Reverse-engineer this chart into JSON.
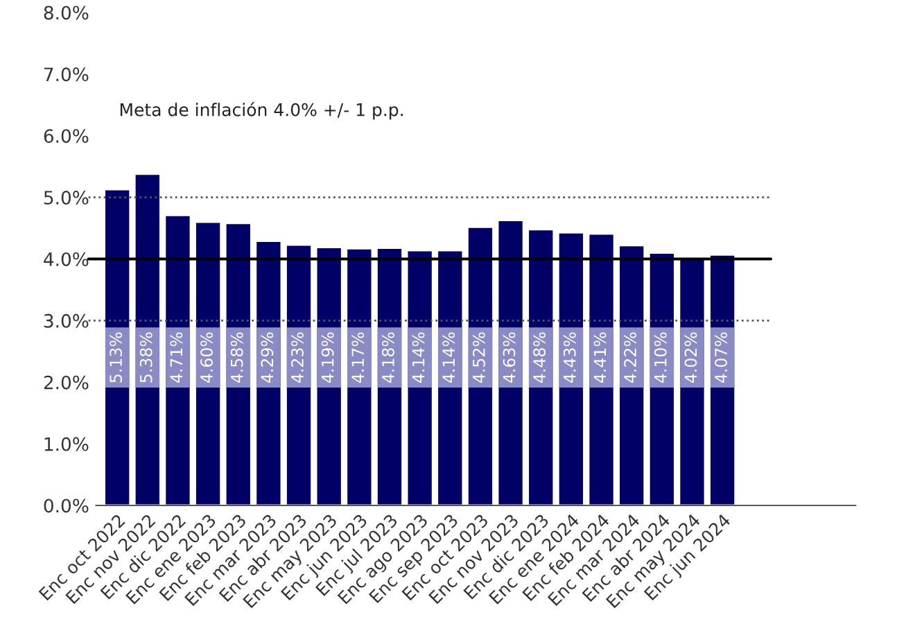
{
  "chart_data": {
    "type": "bar",
    "categories": [
      "Enc oct 2022",
      "Enc nov 2022",
      "Enc dic 2022",
      "Enc ene 2023",
      "Enc feb 2023",
      "Enc mar 2023",
      "Enc abr 2023",
      "Enc may 2023",
      "Enc jun 2023",
      "Enc jul 2023",
      "Enc ago 2023",
      "Enc sep 2023",
      "Enc oct 2023",
      "Enc nov 2023",
      "Enc dic 2023",
      "Enc ene 2024",
      "Enc feb 2024",
      "Enc mar 2024",
      "Enc abr 2024",
      "Enc may 2024",
      "Enc jun 2024"
    ],
    "values": [
      5.13,
      5.38,
      4.71,
      4.6,
      4.58,
      4.29,
      4.23,
      4.19,
      4.17,
      4.18,
      4.14,
      4.14,
      4.52,
      4.63,
      4.48,
      4.43,
      4.41,
      4.22,
      4.1,
      4.02,
      4.07
    ],
    "value_labels": [
      "5.13%",
      "5.38%",
      "4.71%",
      "4.60%",
      "4.58%",
      "4.29%",
      "4.23%",
      "4.19%",
      "4.17%",
      "4.18%",
      "4.14%",
      "4.14%",
      "4.52%",
      "4.63%",
      "4.48%",
      "4.43%",
      "4.41%",
      "4.22%",
      "4.10%",
      "4.02%",
      "4.07%"
    ],
    "color": "#000066",
    "ylim": [
      0,
      8
    ],
    "yticks": [
      {
        "value": 0,
        "label": "0.0%"
      },
      {
        "value": 1,
        "label": "1.0%"
      },
      {
        "value": 2,
        "label": "2.0%"
      },
      {
        "value": 3,
        "label": "3.0%"
      },
      {
        "value": 4,
        "label": "4.0%"
      },
      {
        "value": 5,
        "label": "5.0%"
      },
      {
        "value": 6,
        "label": "6.0%"
      },
      {
        "value": 7,
        "label": "7.0%"
      },
      {
        "value": 8,
        "label": "8.0%"
      }
    ],
    "ref_lines": [
      {
        "axis": "y",
        "value": 4,
        "color": "#000000",
        "line_style": "solid"
      },
      {
        "axis": "y",
        "value": 5,
        "color": "#555555",
        "line_style": "dotted"
      },
      {
        "axis": "y",
        "value": 3,
        "color": "#555555",
        "line_style": "dotted"
      }
    ],
    "annotations": [
      "Meta de inflación 4.0% +/- 1 p.p."
    ],
    "grid": false,
    "legend": false
  }
}
